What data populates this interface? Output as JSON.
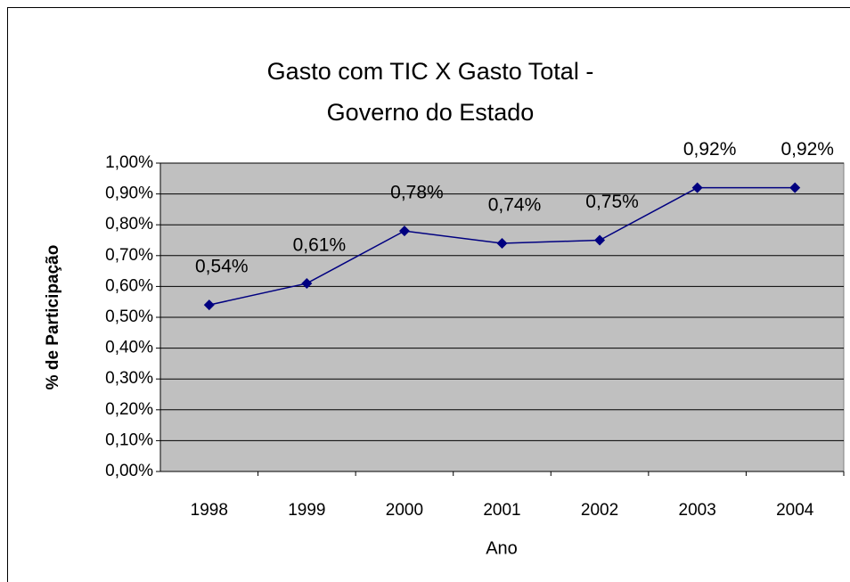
{
  "chart_data": {
    "type": "line",
    "title": [
      "Gasto com TIC X Gasto Total -",
      "Governo do Estado"
    ],
    "x_label": "Ano",
    "y_label": "% de Participação",
    "categories": [
      "1998",
      "1999",
      "2000",
      "2001",
      "2002",
      "2003",
      "2004"
    ],
    "series": [
      {
        "color": "#000080",
        "values": [
          0.54,
          0.61,
          0.78,
          0.74,
          0.75,
          0.92,
          0.92
        ],
        "value_labels": [
          "0,54%",
          "0,61%",
          "0,78%",
          "0,74%",
          "0,75%",
          "0,92%",
          "0,92%"
        ]
      }
    ],
    "ylim": [
      0,
      1
    ],
    "yticks": [
      {
        "value": 0,
        "label": "0,00%"
      },
      {
        "value": 0.1,
        "label": "0,10%"
      },
      {
        "value": 0.2,
        "label": "0,20%"
      },
      {
        "value": 0.3,
        "label": "0,30%"
      },
      {
        "value": 0.4,
        "label": "0,40%"
      },
      {
        "value": 0.5,
        "label": "0,50%"
      },
      {
        "value": 0.6,
        "label": "0,60%"
      },
      {
        "value": 0.7,
        "label": "0,70%"
      },
      {
        "value": 0.8,
        "label": "0,80%"
      },
      {
        "value": 0.9,
        "label": "0,90%"
      },
      {
        "value": 1,
        "label": "1,00%"
      }
    ],
    "grid": true,
    "plot_background": "#c0c0c0"
  }
}
